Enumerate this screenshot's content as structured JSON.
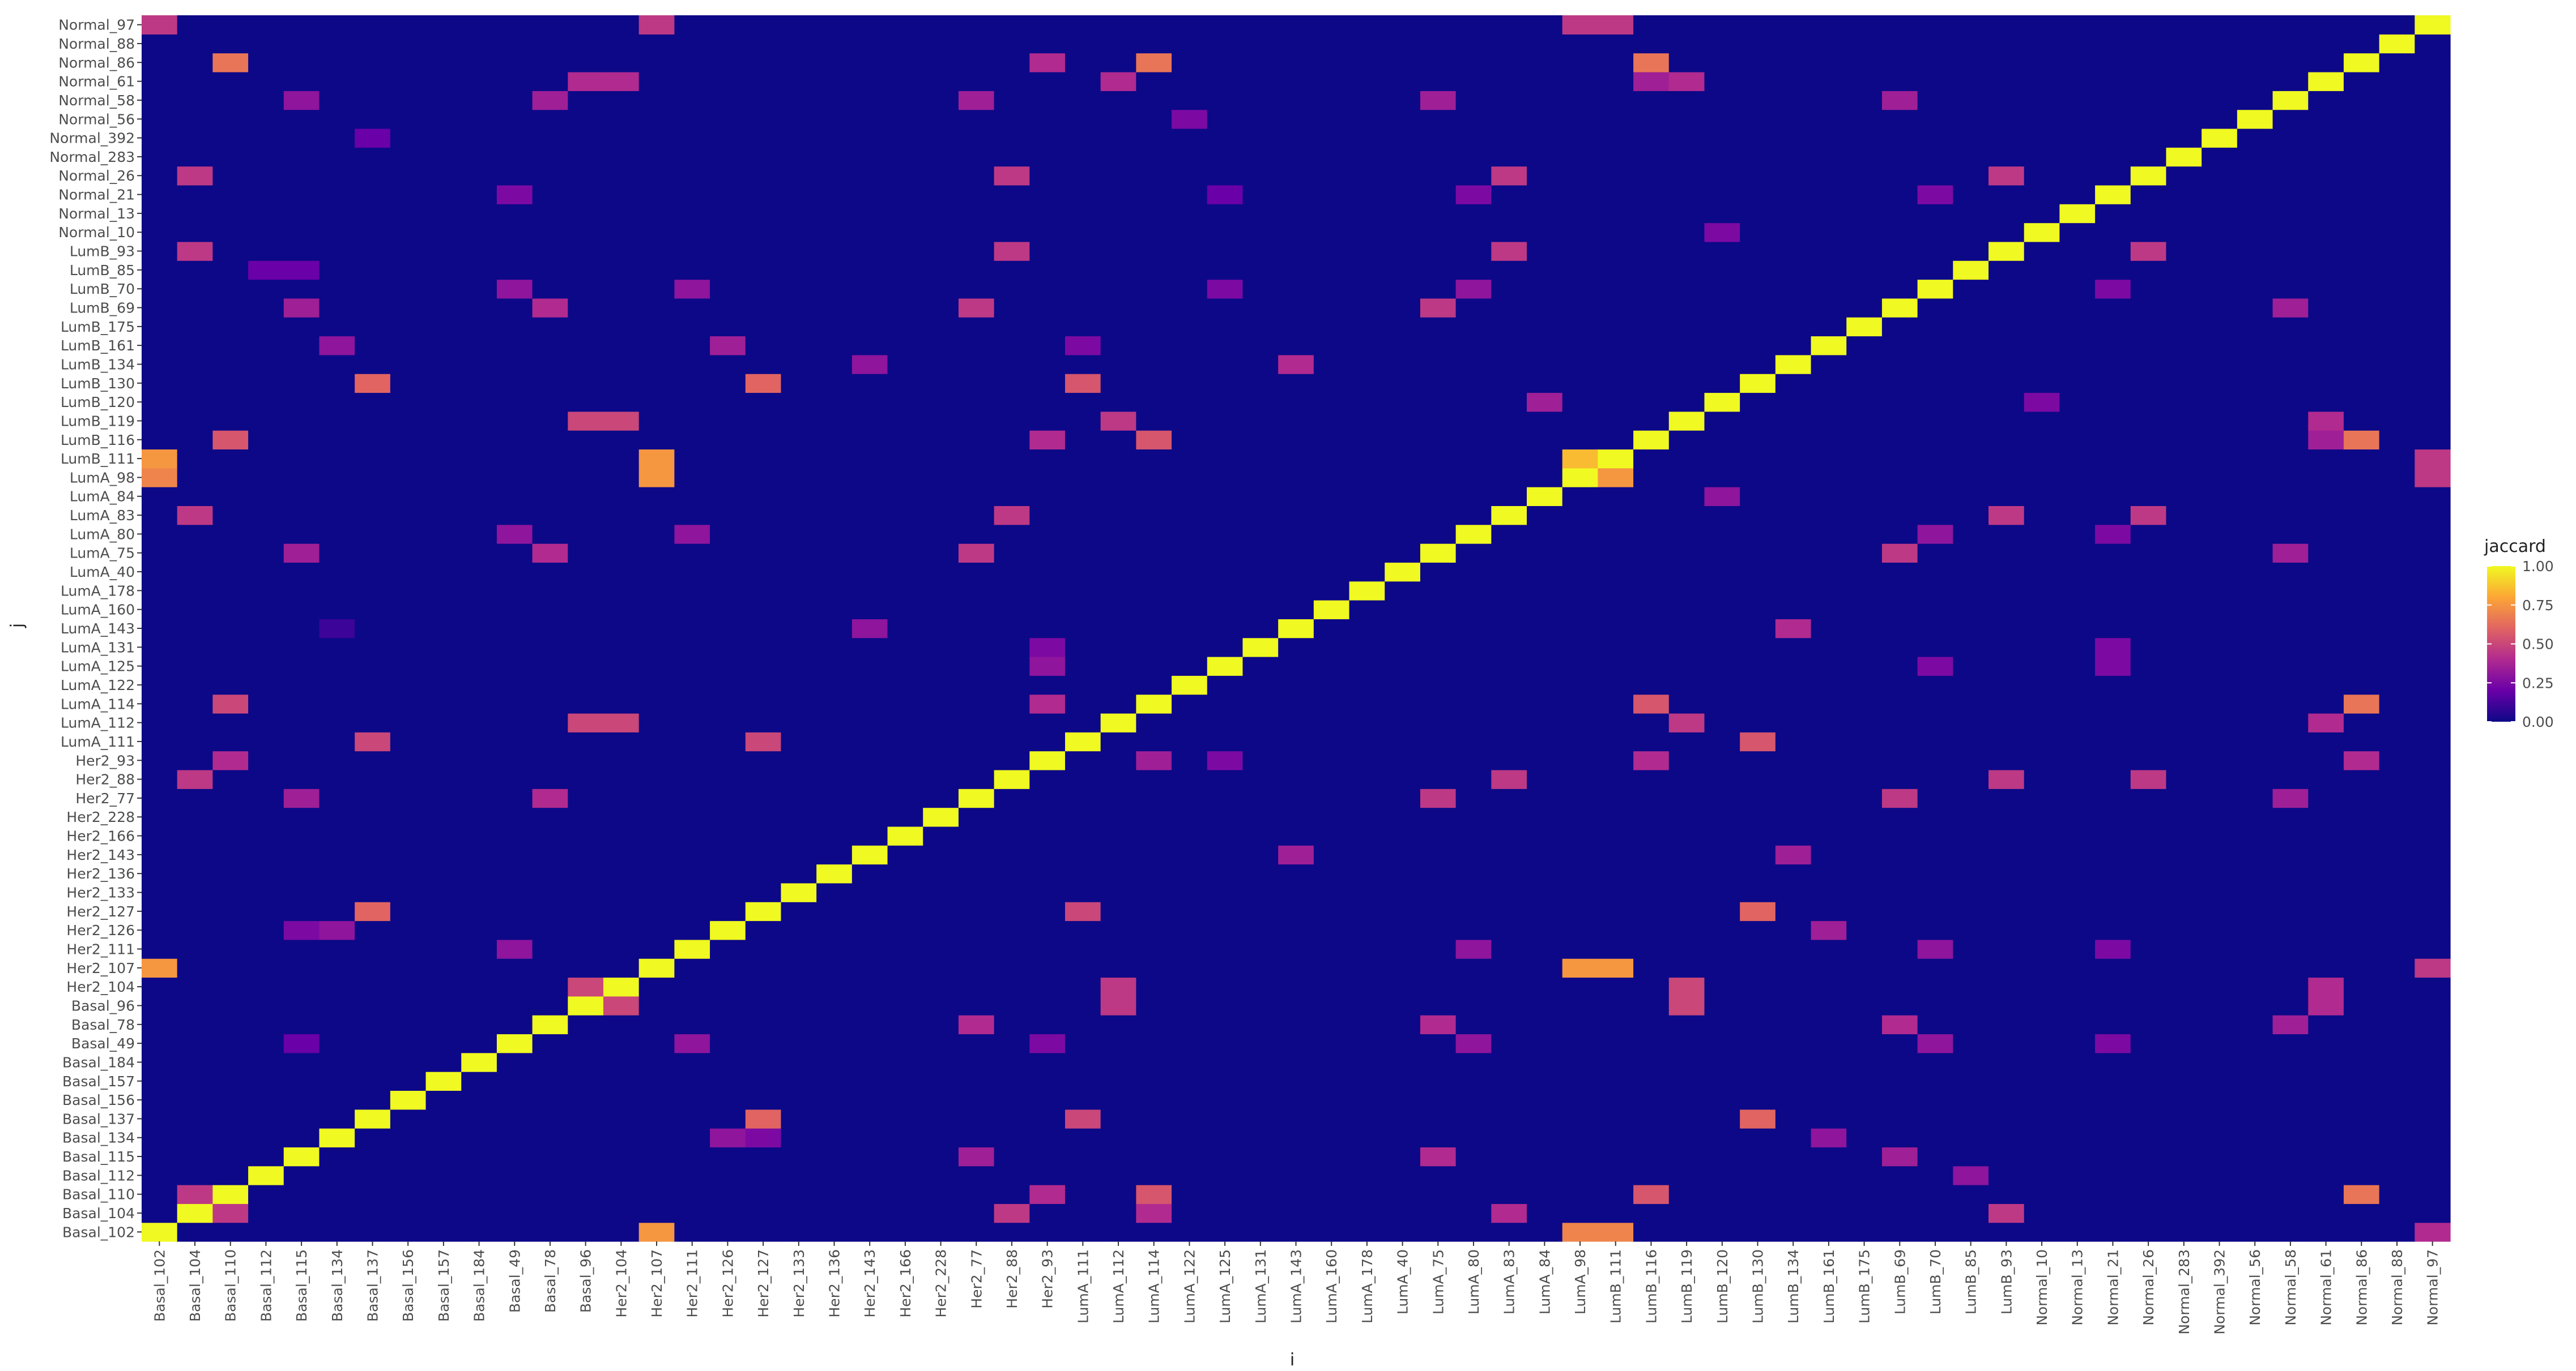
{
  "chart_data": {
    "type": "heatmap",
    "xlabel": "i",
    "ylabel": "j",
    "labels": [
      "Basal_102",
      "Basal_104",
      "Basal_110",
      "Basal_112",
      "Basal_115",
      "Basal_134",
      "Basal_137",
      "Basal_156",
      "Basal_157",
      "Basal_184",
      "Basal_49",
      "Basal_78",
      "Basal_96",
      "Her2_104",
      "Her2_107",
      "Her2_111",
      "Her2_126",
      "Her2_127",
      "Her2_133",
      "Her2_136",
      "Her2_143",
      "Her2_166",
      "Her2_228",
      "Her2_77",
      "Her2_88",
      "Her2_93",
      "LumA_111",
      "LumA_112",
      "LumA_114",
      "LumA_122",
      "LumA_125",
      "LumA_131",
      "LumA_143",
      "LumA_160",
      "LumA_178",
      "LumA_40",
      "LumA_75",
      "LumA_80",
      "LumA_83",
      "LumA_84",
      "LumA_98",
      "LumB_111",
      "LumB_116",
      "LumB_119",
      "LumB_120",
      "LumB_130",
      "LumB_134",
      "LumB_161",
      "LumB_175",
      "LumB_69",
      "LumB_70",
      "LumB_85",
      "LumB_93",
      "Normal_10",
      "Normal_13",
      "Normal_21",
      "Normal_26",
      "Normal_283",
      "Normal_392",
      "Normal_56",
      "Normal_58",
      "Normal_61",
      "Normal_86",
      "Normal_88",
      "Normal_97"
    ],
    "x_tick_labels": [
      "Basal_102",
      "Basal_104",
      "Basal_110",
      "Basal_112",
      "Basal_115",
      "Basal_134",
      "Basal_137",
      "Basal_156",
      "Basal_157",
      "Basal_184",
      "Basal_49",
      "Basal_78",
      "Basal_96",
      "Her2_104",
      "Her2_107",
      "Her2_111",
      "Her2_126",
      "Her2_127",
      "Her2_133",
      "Her2_136",
      "Her2_143",
      "Her2_166",
      "Her2_228",
      "Her2_77",
      "Her2_88",
      "Her2_93",
      "LumA_111",
      "LumA_112",
      "LumA_114",
      "LumA_122",
      "LumA_125",
      "LumA_131",
      "LumA_143",
      "LumA_160",
      "LumA_178",
      "LumA_40",
      "LumA_75",
      "LumA_80",
      "LumA_83",
      "LumA_84",
      "LumA_98",
      "LumB_111",
      "LumB_116",
      "LumB_119",
      "LumB_120",
      "LumB_130",
      "LumB_134",
      "LumB_161",
      "LumB_175",
      "LumB_69",
      "LumB_70",
      "LumB_85",
      "LumB_93",
      "Normal_10",
      "Normal_13",
      "Normal_21",
      "Normal_26",
      "Normal_283",
      "Normal_392",
      "Normal_56",
      "Normal_58",
      "Normal_61",
      "Normal_86",
      "Normal_88",
      "Normal_97"
    ],
    "y_tick_labels": [
      "Basal_102",
      "Basal_104",
      "Basal_110",
      "Basal_112",
      "Basal_115",
      "Basal_134",
      "Basal_137",
      "Basal_156",
      "Basal_157",
      "Basal_184",
      "Basal_49",
      "Basal_78",
      "Basal_96",
      "Her2_104",
      "Her2_107",
      "Her2_111",
      "Her2_126",
      "Her2_127",
      "Her2_133",
      "Her2_136",
      "Her2_143",
      "Her2_166",
      "Her2_228",
      "Her2_77",
      "Her2_88",
      "Her2_93",
      "LumA_111",
      "LumA_112",
      "LumA_114",
      "LumA_122",
      "LumA_125",
      "LumA_131",
      "LumA_143",
      "LumA_160",
      "LumA_178",
      "LumA_40",
      "LumA_75",
      "LumA_80",
      "LumA_83",
      "LumA_84",
      "LumA_98",
      "LumB_111",
      "LumB_116",
      "LumB_119",
      "LumB_120",
      "LumB_130",
      "LumB_134",
      "LumB_161",
      "LumB_175",
      "LumB_69",
      "LumB_70",
      "LumB_85",
      "LumB_93",
      "Normal_10",
      "Normal_13",
      "Normal_21",
      "Normal_26",
      "Normal_283",
      "Normal_392",
      "Normal_56",
      "Normal_58",
      "Normal_61",
      "Normal_86",
      "Normal_88",
      "Normal_97"
    ],
    "diagonal_value": 1.0,
    "background_value": 0.0,
    "cells": [
      [
        "Basal_102",
        "Her2_107",
        0.75
      ],
      [
        "Basal_102",
        "LumA_98",
        0.7
      ],
      [
        "Basal_102",
        "LumB_111",
        0.7
      ],
      [
        "Basal_102",
        "Normal_97",
        0.4
      ],
      [
        "Basal_104",
        "Basal_110",
        0.45
      ],
      [
        "Basal_104",
        "Her2_88",
        0.45
      ],
      [
        "Basal_104",
        "LumA_114",
        0.4
      ],
      [
        "Basal_104",
        "LumB_93",
        0.45
      ],
      [
        "Basal_104",
        "LumA_83",
        0.4
      ],
      [
        "Basal_110",
        "Basal_104",
        0.45
      ],
      [
        "Basal_110",
        "Her2_93",
        0.4
      ],
      [
        "Basal_110",
        "LumA_114",
        0.55
      ],
      [
        "Basal_110",
        "LumB_116",
        0.55
      ],
      [
        "Basal_110",
        "Normal_86",
        0.65
      ],
      [
        "Basal_112",
        "LumB_85",
        0.3
      ],
      [
        "Basal_115",
        "Her2_77",
        0.35
      ],
      [
        "Basal_115",
        "LumA_75",
        0.4
      ],
      [
        "Basal_115",
        "LumB_69",
        0.35
      ],
      [
        "Basal_134",
        "Her2_126",
        0.3
      ],
      [
        "Basal_134",
        "Her2_127",
        0.25
      ],
      [
        "Basal_134",
        "LumB_161",
        0.3
      ],
      [
        "Basal_137",
        "Her2_127",
        0.6
      ],
      [
        "Basal_137",
        "LumA_111",
        0.5
      ],
      [
        "Basal_137",
        "LumB_130",
        0.6
      ],
      [
        "Basal_49",
        "Basal_115",
        0.2
      ],
      [
        "Basal_49",
        "Her2_93",
        0.25
      ],
      [
        "Basal_49",
        "LumA_80",
        0.3
      ],
      [
        "Basal_49",
        "LumB_70",
        0.3
      ],
      [
        "Basal_49",
        "Normal_21",
        0.25
      ],
      [
        "Basal_49",
        "Her2_111",
        0.3
      ],
      [
        "Basal_78",
        "Her2_77",
        0.4
      ],
      [
        "Basal_78",
        "LumA_75",
        0.4
      ],
      [
        "Basal_78",
        "LumB_69",
        0.4
      ],
      [
        "Basal_78",
        "Normal_58",
        0.35
      ],
      [
        "Basal_96",
        "LumA_112",
        0.45
      ],
      [
        "Basal_96",
        "LumB_119",
        0.5
      ],
      [
        "Basal_96",
        "Normal_61",
        0.4
      ],
      [
        "Basal_96",
        "Her2_104",
        0.5
      ],
      [
        "Her2_104",
        "Basal_96",
        0.5
      ],
      [
        "Her2_104",
        "LumA_112",
        0.45
      ],
      [
        "Her2_104",
        "LumB_119",
        0.5
      ],
      [
        "Her2_104",
        "Normal_61",
        0.4
      ],
      [
        "Her2_107",
        "Basal_102",
        0.75
      ],
      [
        "Her2_107",
        "LumA_98",
        0.75
      ],
      [
        "Her2_107",
        "LumB_111",
        0.75
      ],
      [
        "Her2_107",
        "Normal_97",
        0.45
      ],
      [
        "Her2_111",
        "Basal_49",
        0.3
      ],
      [
        "Her2_111",
        "LumA_80",
        0.3
      ],
      [
        "Her2_111",
        "LumB_70",
        0.3
      ],
      [
        "Her2_111",
        "Normal_21",
        0.25
      ],
      [
        "Her2_126",
        "Basal_115",
        0.25
      ],
      [
        "Her2_126",
        "Basal_134",
        0.3
      ],
      [
        "Her2_126",
        "LumB_161",
        0.35
      ],
      [
        "Her2_127",
        "Basal_137",
        0.6
      ],
      [
        "Her2_127",
        "LumA_111",
        0.5
      ],
      [
        "Her2_127",
        "LumB_130",
        0.6
      ],
      [
        "Her2_143",
        "LumA_143",
        0.35
      ],
      [
        "Her2_143",
        "LumB_134",
        0.35
      ],
      [
        "Her2_77",
        "Basal_115",
        0.35
      ],
      [
        "Her2_77",
        "Basal_78",
        0.4
      ],
      [
        "Her2_77",
        "LumA_75",
        0.45
      ],
      [
        "Her2_77",
        "LumB_69",
        0.45
      ],
      [
        "Her2_77",
        "Normal_58",
        0.35
      ],
      [
        "Her2_88",
        "Basal_104",
        0.45
      ],
      [
        "Her2_88",
        "LumA_83",
        0.45
      ],
      [
        "Her2_88",
        "LumB_93",
        0.45
      ],
      [
        "Her2_88",
        "Normal_26",
        0.45
      ],
      [
        "Her2_93",
        "Basal_110",
        0.4
      ],
      [
        "Her2_93",
        "LumA_114",
        0.35
      ],
      [
        "Her2_93",
        "LumB_116",
        0.4
      ],
      [
        "Her2_93",
        "Normal_86",
        0.4
      ],
      [
        "Her2_93",
        "LumA_125",
        0.25
      ],
      [
        "LumA_111",
        "Basal_137",
        0.5
      ],
      [
        "LumA_111",
        "Her2_127",
        0.5
      ],
      [
        "LumA_111",
        "LumB_130",
        0.55
      ],
      [
        "LumA_112",
        "Basal_96",
        0.5
      ],
      [
        "LumA_112",
        "Her2_104",
        0.5
      ],
      [
        "LumA_112",
        "LumB_119",
        0.45
      ],
      [
        "LumA_112",
        "Normal_61",
        0.4
      ],
      [
        "LumA_114",
        "Basal_110",
        0.5
      ],
      [
        "LumA_114",
        "Her2_93",
        0.4
      ],
      [
        "LumA_114",
        "LumB_116",
        0.55
      ],
      [
        "LumA_114",
        "Normal_86",
        0.65
      ],
      [
        "LumA_125",
        "Her2_93",
        0.3
      ],
      [
        "LumA_125",
        "LumB_70",
        0.25
      ],
      [
        "LumA_125",
        "Normal_21",
        0.25
      ],
      [
        "LumA_131",
        "Her2_93",
        0.25
      ],
      [
        "LumA_131",
        "Normal_21",
        0.25
      ],
      [
        "LumA_143",
        "Basal_134",
        0.1
      ],
      [
        "LumA_143",
        "Her2_143",
        0.3
      ],
      [
        "LumA_143",
        "LumB_134",
        0.4
      ],
      [
        "LumA_75",
        "Basal_78",
        0.4
      ],
      [
        "LumA_75",
        "Basal_115",
        0.35
      ],
      [
        "LumA_75",
        "Her2_77",
        0.45
      ],
      [
        "LumA_75",
        "LumB_69",
        0.45
      ],
      [
        "LumA_75",
        "Normal_58",
        0.35
      ],
      [
        "LumA_80",
        "Basal_49",
        0.3
      ],
      [
        "LumA_80",
        "Her2_111",
        0.3
      ],
      [
        "LumA_80",
        "LumB_70",
        0.3
      ],
      [
        "LumA_80",
        "Normal_21",
        0.25
      ],
      [
        "LumA_83",
        "Basal_104",
        0.45
      ],
      [
        "LumA_83",
        "Her2_88",
        0.45
      ],
      [
        "LumA_83",
        "LumB_93",
        0.45
      ],
      [
        "LumA_83",
        "Normal_26",
        0.45
      ],
      [
        "LumA_84",
        "LumB_120",
        0.3
      ],
      [
        "LumA_98",
        "Basal_102",
        0.7
      ],
      [
        "LumA_98",
        "Her2_107",
        0.75
      ],
      [
        "LumA_98",
        "LumB_111",
        0.75
      ],
      [
        "LumA_98",
        "Normal_97",
        0.45
      ],
      [
        "LumB_111",
        "Basal_102",
        0.75
      ],
      [
        "LumB_111",
        "Her2_107",
        0.75
      ],
      [
        "LumB_111",
        "LumA_98",
        0.85
      ],
      [
        "LumB_111",
        "Normal_97",
        0.45
      ],
      [
        "LumB_116",
        "Basal_110",
        0.55
      ],
      [
        "LumB_116",
        "Her2_93",
        0.4
      ],
      [
        "LumB_116",
        "LumA_114",
        0.55
      ],
      [
        "LumB_116",
        "Normal_86",
        0.65
      ],
      [
        "LumB_116",
        "Normal_61",
        0.35
      ],
      [
        "LumB_119",
        "Basal_96",
        0.5
      ],
      [
        "LumB_119",
        "Her2_104",
        0.5
      ],
      [
        "LumB_119",
        "LumA_112",
        0.45
      ],
      [
        "LumB_119",
        "Normal_61",
        0.4
      ],
      [
        "LumB_120",
        "LumA_84",
        0.35
      ],
      [
        "LumB_120",
        "Normal_10",
        0.25
      ],
      [
        "LumB_130",
        "Basal_137",
        0.6
      ],
      [
        "LumB_130",
        "Her2_127",
        0.6
      ],
      [
        "LumB_130",
        "LumA_111",
        0.55
      ],
      [
        "LumB_134",
        "LumA_143",
        0.4
      ],
      [
        "LumB_134",
        "Her2_143",
        0.3
      ],
      [
        "LumB_161",
        "Basal_134",
        0.3
      ],
      [
        "LumB_161",
        "Her2_126",
        0.35
      ],
      [
        "LumB_161",
        "LumA_111",
        0.25
      ],
      [
        "LumB_69",
        "Basal_78",
        0.4
      ],
      [
        "LumB_69",
        "Basal_115",
        0.35
      ],
      [
        "LumB_69",
        "Her2_77",
        0.45
      ],
      [
        "LumB_69",
        "LumA_75",
        0.45
      ],
      [
        "LumB_69",
        "Normal_58",
        0.35
      ],
      [
        "LumB_70",
        "Basal_49",
        0.3
      ],
      [
        "LumB_70",
        "Her2_111",
        0.3
      ],
      [
        "LumB_70",
        "LumA_80",
        0.3
      ],
      [
        "LumB_70",
        "LumA_125",
        0.25
      ],
      [
        "LumB_70",
        "Normal_21",
        0.25
      ],
      [
        "LumB_85",
        "Basal_115",
        0.2
      ],
      [
        "LumB_85",
        "Basal_112",
        0.2
      ],
      [
        "LumB_93",
        "Basal_104",
        0.45
      ],
      [
        "LumB_93",
        "Her2_88",
        0.45
      ],
      [
        "LumB_93",
        "LumA_83",
        0.45
      ],
      [
        "LumB_93",
        "Normal_26",
        0.45
      ],
      [
        "Normal_10",
        "LumB_120",
        0.25
      ],
      [
        "Normal_21",
        "Basal_49",
        0.25
      ],
      [
        "Normal_21",
        "LumA_80",
        0.25
      ],
      [
        "Normal_21",
        "LumB_70",
        0.25
      ],
      [
        "Normal_21",
        "LumA_125",
        0.2
      ],
      [
        "Normal_26",
        "Basal_104",
        0.45
      ],
      [
        "Normal_26",
        "Her2_88",
        0.45
      ],
      [
        "Normal_26",
        "LumA_83",
        0.45
      ],
      [
        "Normal_26",
        "LumB_93",
        0.45
      ],
      [
        "Normal_392",
        "Basal_137",
        0.2
      ],
      [
        "Normal_58",
        "Basal_115",
        0.3
      ],
      [
        "Normal_58",
        "Basal_78",
        0.35
      ],
      [
        "Normal_58",
        "Her2_77",
        0.35
      ],
      [
        "Normal_58",
        "LumA_75",
        0.35
      ],
      [
        "Normal_58",
        "LumB_69",
        0.35
      ],
      [
        "Normal_56",
        "LumA_122",
        0.25
      ],
      [
        "Normal_61",
        "Basal_96",
        0.4
      ],
      [
        "Normal_61",
        "Her2_104",
        0.4
      ],
      [
        "Normal_61",
        "LumA_112",
        0.4
      ],
      [
        "Normal_61",
        "LumB_119",
        0.4
      ],
      [
        "Normal_61",
        "LumB_116",
        0.35
      ],
      [
        "Normal_86",
        "Basal_110",
        0.65
      ],
      [
        "Normal_86",
        "Her2_93",
        0.4
      ],
      [
        "Normal_86",
        "LumA_114",
        0.65
      ],
      [
        "Normal_86",
        "LumB_116",
        0.65
      ],
      [
        "Normal_97",
        "Basal_102",
        0.45
      ],
      [
        "Normal_97",
        "Her2_107",
        0.45
      ],
      [
        "Normal_97",
        "LumA_98",
        0.45
      ],
      [
        "Normal_97",
        "LumB_111",
        0.45
      ]
    ],
    "legend": {
      "title": "jaccard",
      "ticks": [
        "1.00",
        "0.75",
        "0.50",
        "0.25",
        "0.00"
      ],
      "placement": "right",
      "colors": [
        "#0d0887",
        "#6a00a8",
        "#b12a90",
        "#e16462",
        "#fca636",
        "#f0f921"
      ]
    }
  }
}
